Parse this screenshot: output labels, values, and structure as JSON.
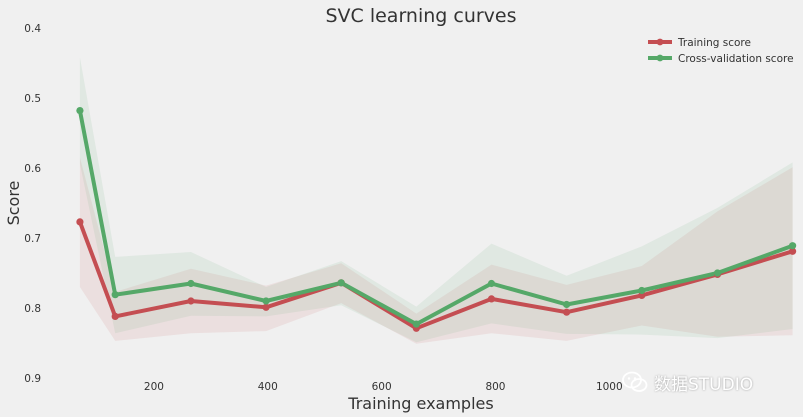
{
  "chart_data": {
    "type": "line",
    "title": "SVC learning curves",
    "xlabel": "Training examples",
    "ylabel": "Score",
    "xlim": [
      35,
      1335
    ],
    "ylim": [
      0.9,
      0.4
    ],
    "y_axis_inverted": true,
    "x_ticks": [
      200,
      400,
      600,
      800,
      1000
    ],
    "x_tick_labels": [
      "200",
      "400",
      "600",
      "800",
      "1000"
    ],
    "y_ticks": [
      0.4,
      0.5,
      0.6,
      0.7,
      0.8,
      0.9
    ],
    "y_tick_labels": [
      "0.4",
      "0.5",
      "0.6",
      "0.7",
      "0.8",
      "0.9"
    ],
    "grid": false,
    "legend_position": "top-right",
    "x": [
      70,
      132,
      265,
      397,
      529,
      661,
      793,
      925,
      1057,
      1190,
      1322
    ],
    "series": [
      {
        "name": "Training score",
        "color": "#c44e52",
        "values": [
          0.677,
          0.812,
          0.79,
          0.799,
          0.764,
          0.829,
          0.787,
          0.806,
          0.782,
          0.752,
          0.719
        ],
        "band_upper": [
          0.585,
          0.777,
          0.744,
          0.768,
          0.736,
          0.808,
          0.738,
          0.767,
          0.74,
          0.662,
          0.599
        ],
        "band_lower": [
          0.77,
          0.847,
          0.836,
          0.833,
          0.793,
          0.851,
          0.836,
          0.847,
          0.825,
          0.841,
          0.839
        ]
      },
      {
        "name": "Cross-validation score",
        "color": "#55a868",
        "values": [
          0.518,
          0.781,
          0.765,
          0.79,
          0.764,
          0.823,
          0.765,
          0.795,
          0.775,
          0.75,
          0.711
        ],
        "band_upper": [
          0.442,
          0.727,
          0.72,
          0.77,
          0.733,
          0.798,
          0.708,
          0.754,
          0.712,
          0.657,
          0.592
        ],
        "band_lower": [
          0.594,
          0.836,
          0.811,
          0.812,
          0.796,
          0.849,
          0.822,
          0.837,
          0.838,
          0.843,
          0.83
        ]
      }
    ]
  },
  "watermark": {
    "text": "数据STUDIO",
    "icon": "wechat-icon"
  }
}
